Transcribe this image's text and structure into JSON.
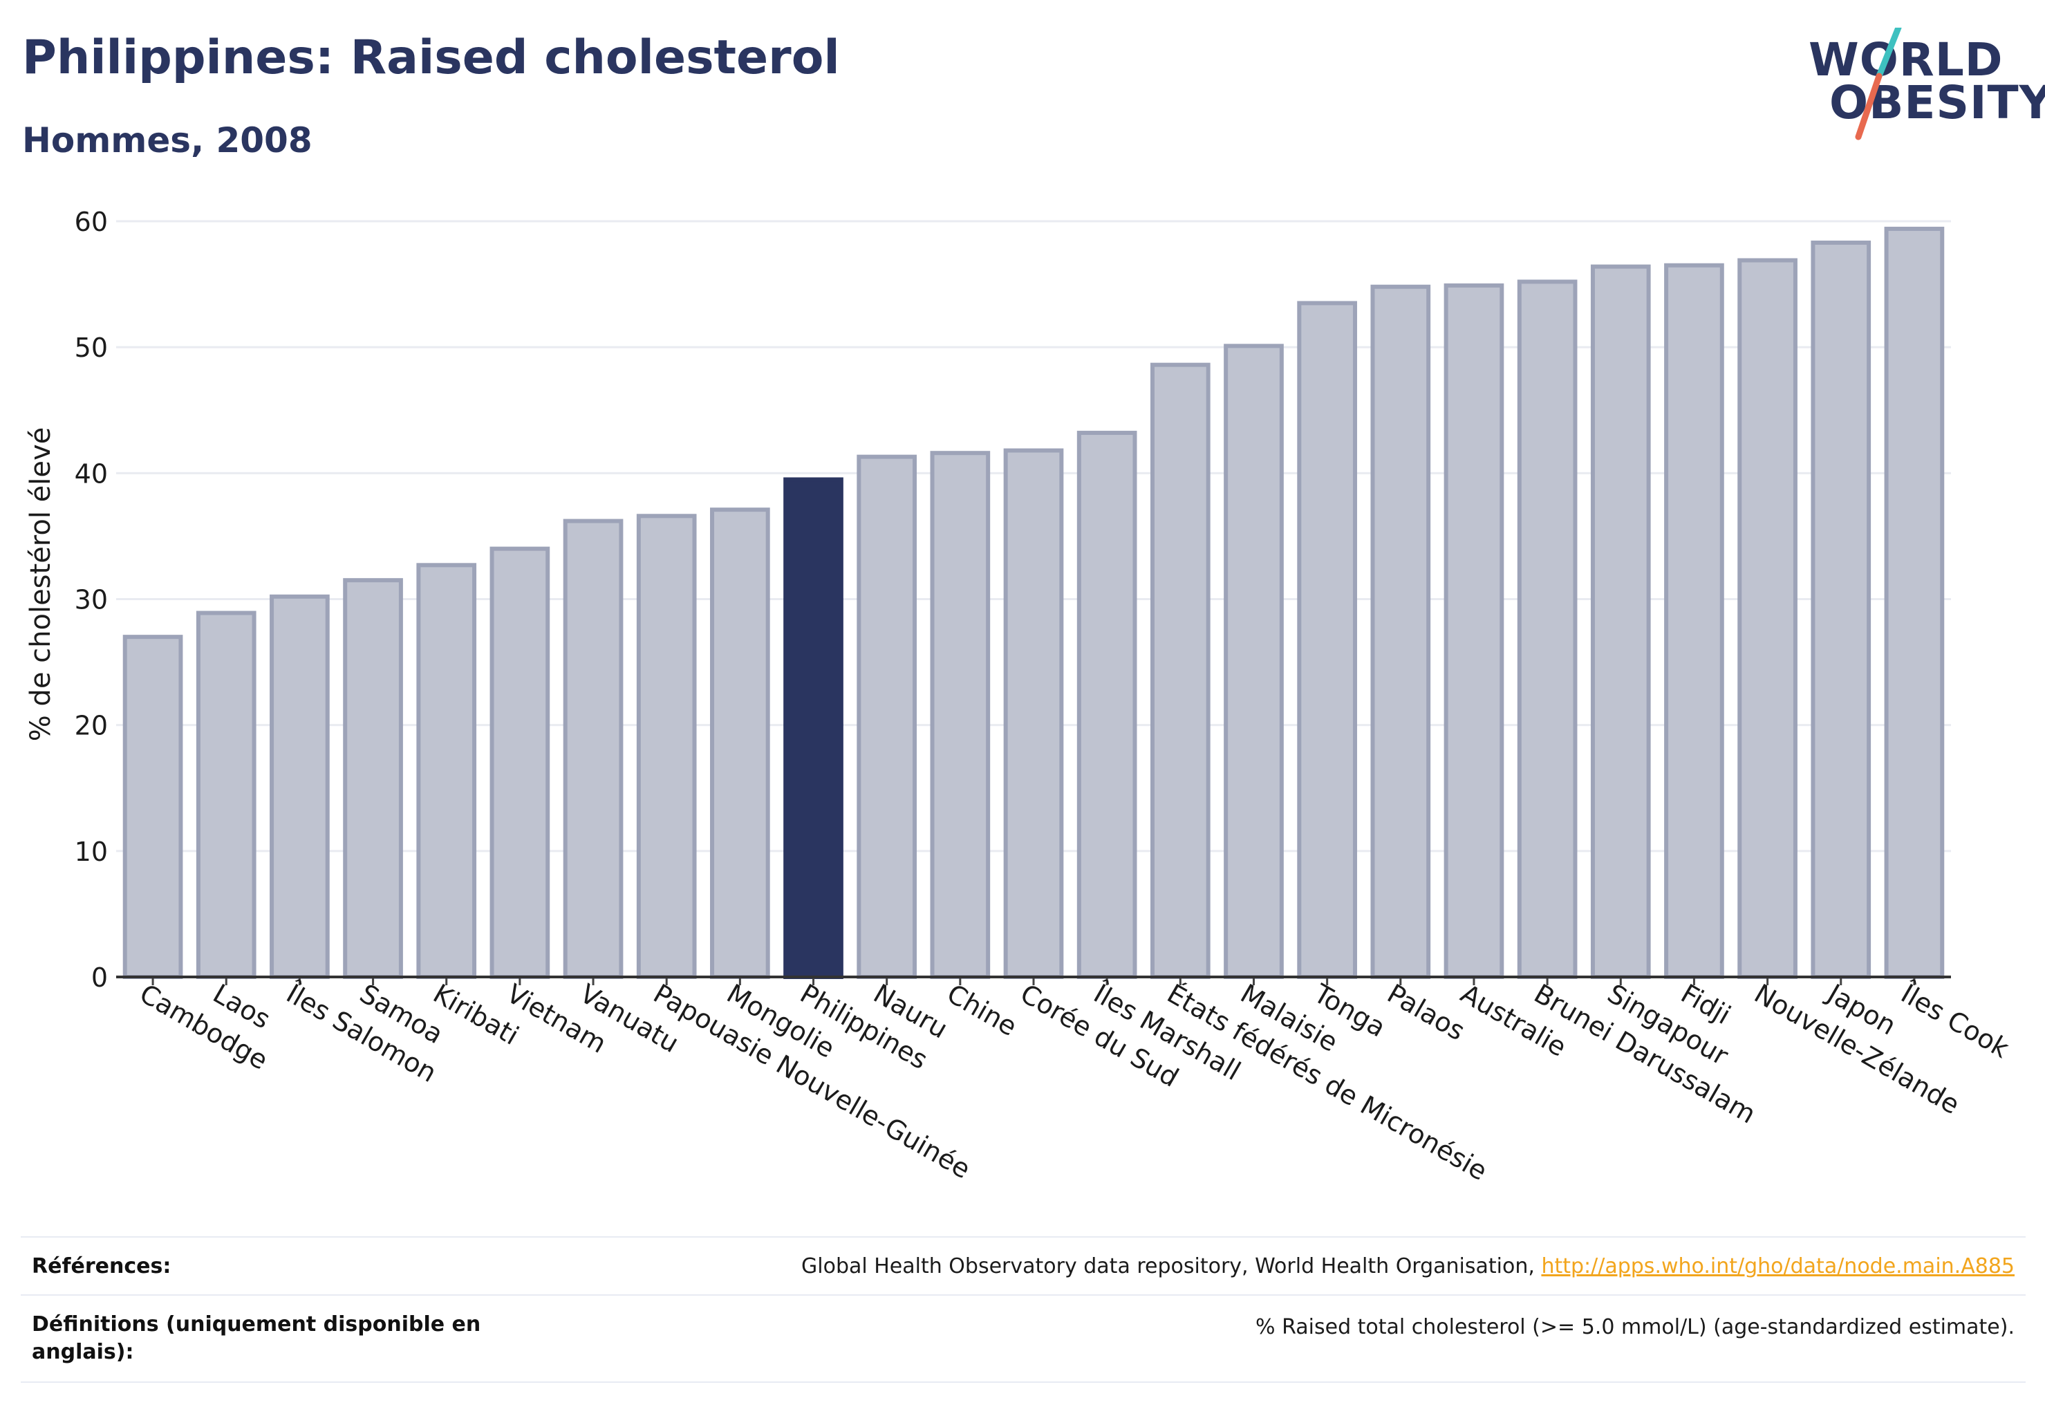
{
  "header": {
    "title": "Philippines: Raised cholesterol",
    "subtitle": "Hommes, 2008"
  },
  "logo": {
    "line1": "WORLD",
    "line2": "OBESITY",
    "accent_colors": [
      "#3ec1c0",
      "#e8694f"
    ]
  },
  "colors": {
    "highlight": "#2a3560",
    "bar_fill": "#bfc3d0",
    "bar_stroke": "#9da3b8",
    "link": "#f2a51d"
  },
  "chart_data": {
    "type": "bar",
    "ylabel": "% de cholestérol élevé",
    "xlabel": "",
    "ylim": [
      0,
      60
    ],
    "yticks": [
      0,
      10,
      20,
      30,
      40,
      50,
      60
    ],
    "grid": true,
    "highlight_category": "Philippines",
    "categories": [
      "Cambodge",
      "Laos",
      "Îles Salomon",
      "Samoa",
      "Kiribati",
      "Vietnam",
      "Vanuatu",
      "Papouasie Nouvelle-Guinée",
      "Mongolie",
      "Philippines",
      "Nauru",
      "Chine",
      "Corée du Sud",
      "Îles Marshall",
      "États fédérés de Micronésie",
      "Malaisie",
      "Tonga",
      "Palaos",
      "Australie",
      "Brunei Darussalam",
      "Singapour",
      "Fidji",
      "Nouvelle-Zélande",
      "Japon",
      "Îles Cook"
    ],
    "values": [
      27.0,
      28.9,
      30.2,
      31.5,
      32.7,
      34.0,
      36.2,
      36.6,
      37.1,
      39.5,
      41.3,
      41.6,
      41.8,
      43.2,
      48.6,
      50.1,
      53.5,
      54.8,
      54.9,
      55.2,
      56.4,
      56.5,
      56.9,
      58.3,
      59.4
    ]
  },
  "footer": {
    "references_label": "Références:",
    "references_text": "Global Health Observatory data repository, World Health Organisation, ",
    "references_link": "http://apps.who.int/gho/data/node.main.A885",
    "definitions_label_1": "Définitions (uniquement disponible en",
    "definitions_label_2": "anglais):",
    "definitions_text": "% Raised total cholesterol (>= 5.0 mmol/L) (age-standardized estimate)."
  }
}
